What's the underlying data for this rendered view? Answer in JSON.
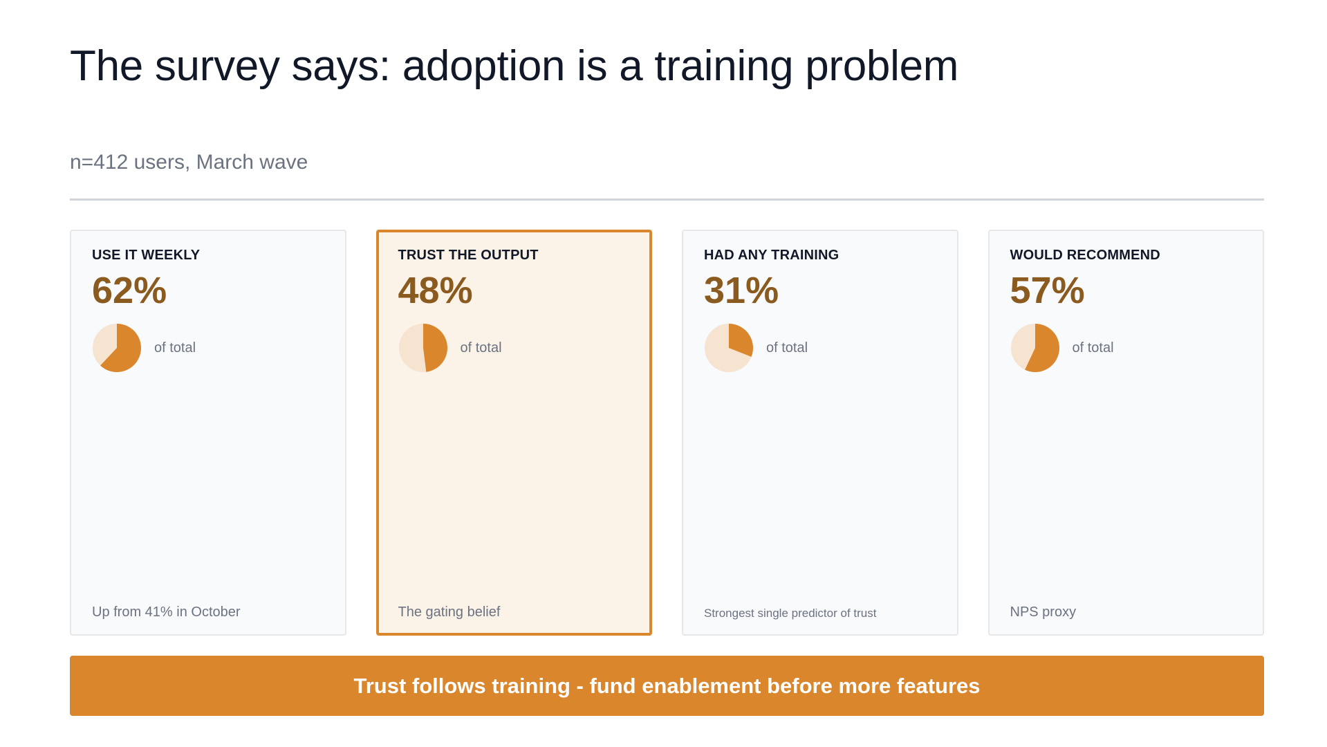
{
  "title": "The survey says: adoption is a training problem",
  "subtitle": "n=412 users, March wave",
  "colors": {
    "accent": "#d9862c",
    "accent_light": "#f6e3d0",
    "value_text": "#8a5a1f"
  },
  "cards": [
    {
      "label": "USE IT WEEKLY",
      "value": "62%",
      "fraction": 0.62,
      "pie_caption": "of total",
      "note": "Up from 41% in October",
      "highlighted": false
    },
    {
      "label": "TRUST THE OUTPUT",
      "value": "48%",
      "fraction": 0.48,
      "pie_caption": "of total",
      "note": "The gating belief",
      "highlighted": true
    },
    {
      "label": "HAD ANY TRAINING",
      "value": "31%",
      "fraction": 0.31,
      "pie_caption": "of total",
      "note": "Strongest single predictor of trust",
      "highlighted": false
    },
    {
      "label": "WOULD RECOMMEND",
      "value": "57%",
      "fraction": 0.57,
      "pie_caption": "of total",
      "note": "NPS proxy",
      "highlighted": false
    }
  ],
  "banner": "Trust follows training - fund enablement before more features"
}
